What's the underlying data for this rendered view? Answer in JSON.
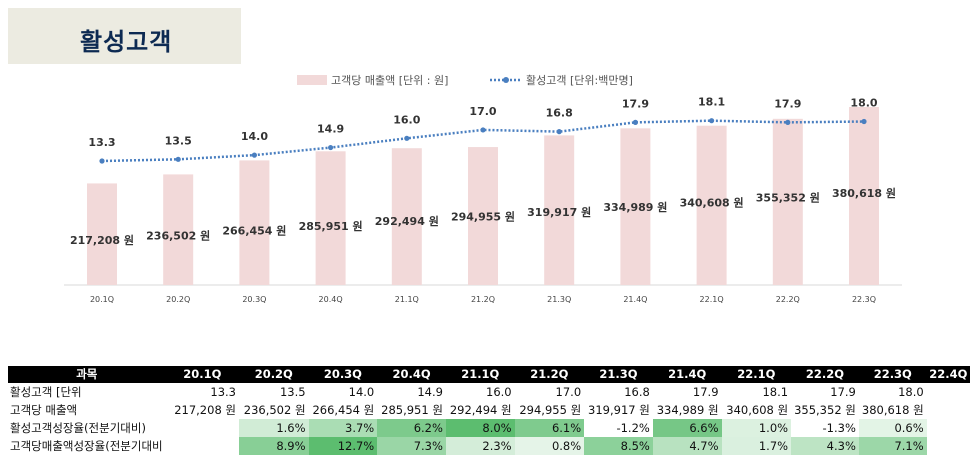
{
  "header": {
    "title": "활성고객"
  },
  "legend": {
    "bar_label": "고객당 매출액 [단위 : 원]",
    "line_label": "활성고객 [단위:백만명]"
  },
  "colors": {
    "bar": "#f2d9d9",
    "line": "#4a7fc0",
    "positive_dark": "#5cbd6f",
    "positive_light": "#eef8f0",
    "negative": "#e02020"
  },
  "chart_data": {
    "type": "bar",
    "categories": [
      "20.1Q",
      "20.2Q",
      "20.3Q",
      "20.4Q",
      "21.1Q",
      "21.2Q",
      "21.3Q",
      "21.4Q",
      "22.1Q",
      "22.2Q",
      "22.3Q"
    ],
    "series": [
      {
        "name": "고객당 매출액 [단위 : 원]",
        "type": "bar",
        "values": [
          217208,
          236502,
          266454,
          285951,
          292494,
          294955,
          319917,
          334989,
          340608,
          355352,
          380618
        ],
        "labels": [
          "217,208 원",
          "236,502 원",
          "266,454 원",
          "285,951 원",
          "292,494 원",
          "294,955 원",
          "319,917 원",
          "334,989 원",
          "340,608 원",
          "355,352 원",
          "380,618 원"
        ]
      },
      {
        "name": "활성고객 [단위:백만명]",
        "type": "line",
        "values": [
          13.3,
          13.5,
          14.0,
          14.9,
          16.0,
          17.0,
          16.8,
          17.9,
          18.1,
          17.9,
          18.0
        ],
        "labels": [
          "13.3",
          "13.5",
          "14.0",
          "14.9",
          "16.0",
          "17.0",
          "16.8",
          "17.9",
          "18.1",
          "17.9",
          "18.0"
        ]
      }
    ],
    "legend_position": "top",
    "grid": false
  },
  "table": {
    "headers": [
      "과목",
      "20.1Q",
      "20.2Q",
      "20.3Q",
      "20.4Q",
      "21.1Q",
      "21.2Q",
      "21.3Q",
      "21.4Q",
      "22.1Q",
      "22.2Q",
      "22.3Q",
      "22.4Q"
    ],
    "rows": [
      {
        "label": "활성고객 [단위",
        "cells": [
          "13.3",
          "13.5",
          "14.0",
          "14.9",
          "16.0",
          "17.0",
          "16.8",
          "17.9",
          "18.1",
          "17.9",
          "18.0",
          ""
        ]
      },
      {
        "label": "고객당 매출액",
        "cells": [
          "217,208 원",
          "236,502 원",
          "266,454 원",
          "285,951 원",
          "292,494 원",
          "294,955 원",
          "319,917 원",
          "334,989 원",
          "340,608 원",
          "355,352 원",
          "380,618 원",
          ""
        ]
      },
      {
        "label": "활성고객성장율(전분기대비)",
        "cells": [
          "",
          "1.6%",
          "3.7%",
          "6.2%",
          "8.0%",
          "6.1%",
          "-1.2%",
          "6.6%",
          "1.0%",
          "-1.3%",
          "0.6%",
          ""
        ],
        "values": [
          null,
          1.6,
          3.7,
          6.2,
          8.0,
          6.1,
          -1.2,
          6.6,
          1.0,
          -1.3,
          0.6,
          null
        ]
      },
      {
        "label": "고객당매출액성장율(전분기대비",
        "cells": [
          "",
          "8.9%",
          "12.7%",
          "7.3%",
          "2.3%",
          "0.8%",
          "8.5%",
          "4.7%",
          "1.7%",
          "4.3%",
          "7.1%",
          ""
        ],
        "values": [
          null,
          8.9,
          12.7,
          7.3,
          2.3,
          0.8,
          8.5,
          4.7,
          1.7,
          4.3,
          7.1,
          null
        ]
      }
    ]
  }
}
